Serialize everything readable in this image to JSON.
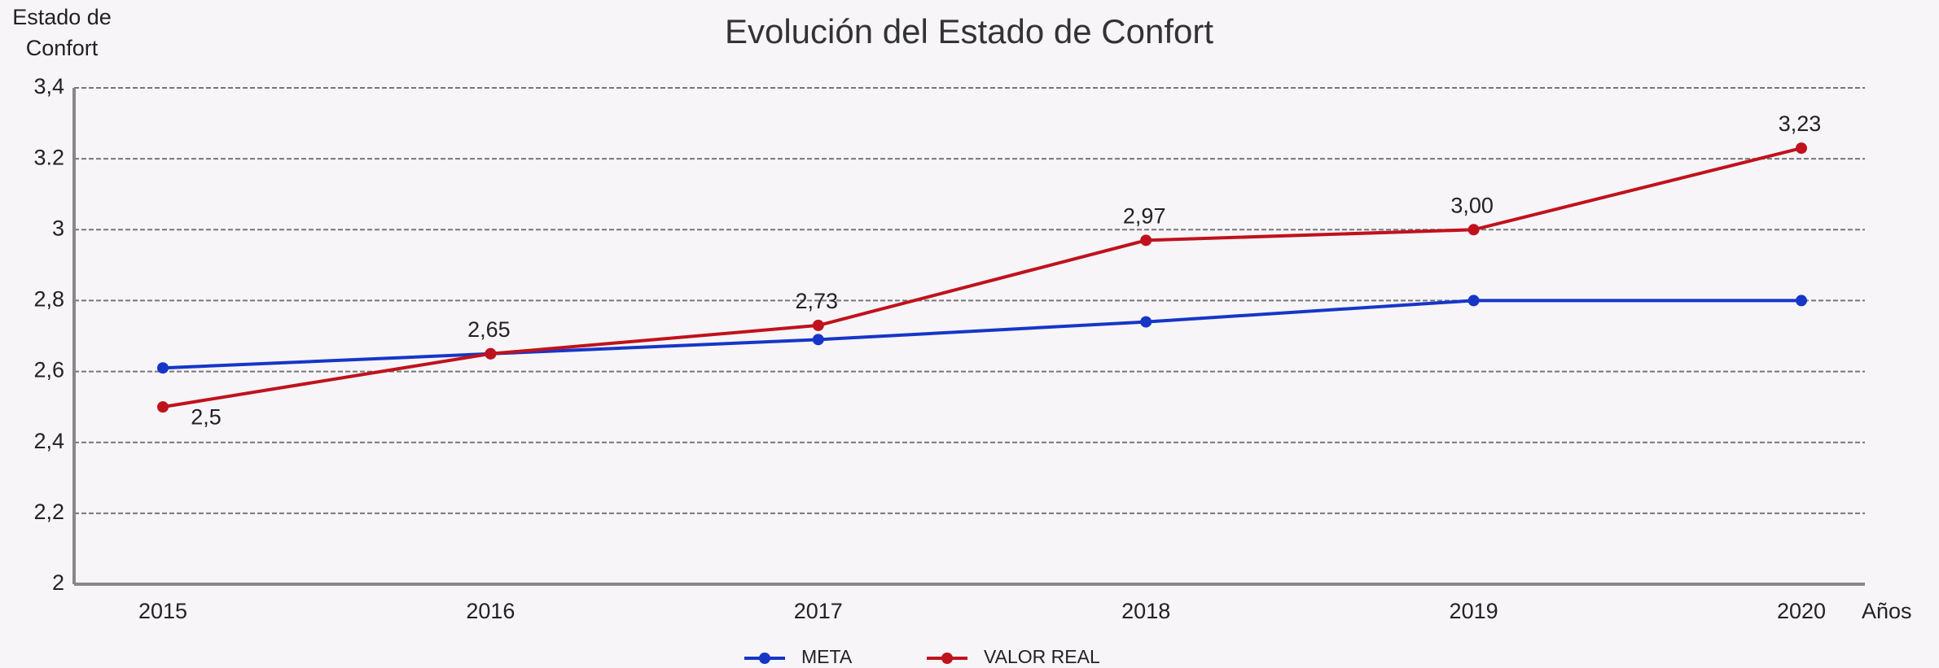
{
  "chart_data": {
    "type": "line",
    "title": "Evolución del Estado de Confort",
    "ylabel": "Estado de Confort",
    "xlabel": "Años",
    "categories": [
      "2015",
      "2016",
      "2017",
      "2018",
      "2019",
      "2020"
    ],
    "series": [
      {
        "name": "META",
        "color": "#1636c8",
        "values": [
          2.61,
          2.65,
          2.69,
          2.74,
          2.8,
          2.8
        ]
      },
      {
        "name": "VALOR REAL",
        "color": "#c0121c",
        "values": [
          2.5,
          2.65,
          2.73,
          2.97,
          3.0,
          3.23
        ],
        "value_labels": [
          "2,5",
          "2,65",
          "2,73",
          "2,97",
          "3,00",
          "3,23"
        ]
      }
    ],
    "ylim": [
      2,
      3.4
    ],
    "yticks": [
      2,
      {
        "value": 2.2,
        "label": "2,2"
      },
      {
        "value": 2.4,
        "label": "2,4"
      },
      {
        "value": 2.6,
        "label": "2,6"
      },
      {
        "value": 2.8,
        "label": "2,8"
      },
      3,
      {
        "value": 3.2,
        "label": "3.2"
      },
      {
        "value": 3.4,
        "label": "3,4"
      }
    ],
    "grid": true,
    "legend": "bottom"
  }
}
